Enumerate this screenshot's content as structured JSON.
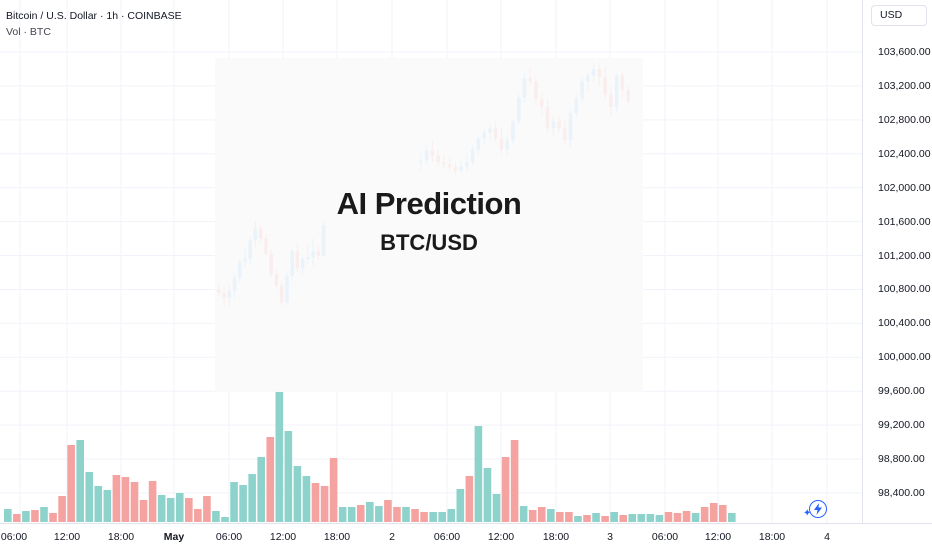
{
  "header": {
    "symbol_line": "Bitcoin / U.S. Dollar · 1h · COINBASE",
    "volume_line": "Vol · BTC"
  },
  "overlay": {
    "title": "AI Prediction",
    "subtitle": "BTC/USD"
  },
  "price_scale": {
    "currency": "USD",
    "labels": [
      "103,600.00",
      "103,200.00",
      "102,800.00",
      "102,400.00",
      "102,000.00",
      "101,600.00",
      "101,200.00",
      "100,800.00",
      "100,400.00",
      "100,000.00",
      "99,600.00",
      "99,200.00",
      "98,800.00",
      "98,400.00"
    ]
  },
  "time_scale": {
    "labels": [
      {
        "text": "06:00",
        "bold": false
      },
      {
        "text": "12:00",
        "bold": false
      },
      {
        "text": "18:00",
        "bold": false
      },
      {
        "text": "May",
        "bold": true
      },
      {
        "text": "06:00",
        "bold": false
      },
      {
        "text": "12:00",
        "bold": false
      },
      {
        "text": "18:00",
        "bold": false
      },
      {
        "text": "2",
        "bold": false
      },
      {
        "text": "06:00",
        "bold": false
      },
      {
        "text": "12:00",
        "bold": false
      },
      {
        "text": "18:00",
        "bold": false
      },
      {
        "text": "3",
        "bold": false
      },
      {
        "text": "06:00",
        "bold": false
      },
      {
        "text": "12:00",
        "bold": false
      },
      {
        "text": "18:00",
        "bold": false
      },
      {
        "text": "4",
        "bold": false
      }
    ]
  },
  "icons": {
    "chart_action": "lightning-icon",
    "sparkle": "sparkle-icon"
  },
  "colors": {
    "up": "#26a69a",
    "down": "#ef5350",
    "up_candle": "#2196f3",
    "volume_up": "#8ed3cb",
    "volume_down": "#f5a3a1"
  },
  "chart_data": {
    "type": "candlestick",
    "symbol": "Bitcoin / U.S. Dollar",
    "interval": "1h",
    "exchange": "COINBASE",
    "y_axis_ticks": [
      98400,
      98800,
      99200,
      99600,
      100000,
      100400,
      100800,
      101200,
      101600,
      102000,
      102400,
      102800,
      103200,
      103600
    ],
    "candles": [
      {
        "o": 100800,
        "h": 100880,
        "l": 100720,
        "c": 100760
      },
      {
        "o": 100760,
        "h": 100820,
        "l": 100620,
        "c": 100700
      },
      {
        "o": 100700,
        "h": 100850,
        "l": 100600,
        "c": 100780
      },
      {
        "o": 100780,
        "h": 100990,
        "l": 100700,
        "c": 100940
      },
      {
        "o": 100940,
        "h": 101150,
        "l": 100880,
        "c": 101130
      },
      {
        "o": 101130,
        "h": 101300,
        "l": 101050,
        "c": 101160
      },
      {
        "o": 101160,
        "h": 101420,
        "l": 101100,
        "c": 101380
      },
      {
        "o": 101380,
        "h": 101600,
        "l": 101300,
        "c": 101520
      },
      {
        "o": 101520,
        "h": 101560,
        "l": 101350,
        "c": 101400
      },
      {
        "o": 101400,
        "h": 101450,
        "l": 101200,
        "c": 101220
      },
      {
        "o": 101220,
        "h": 101280,
        "l": 100950,
        "c": 100980
      },
      {
        "o": 100980,
        "h": 101040,
        "l": 100800,
        "c": 100850
      },
      {
        "o": 100850,
        "h": 100900,
        "l": 100600,
        "c": 100650
      },
      {
        "o": 100650,
        "h": 101000,
        "l": 100620,
        "c": 100960
      },
      {
        "o": 100960,
        "h": 101280,
        "l": 100900,
        "c": 101250
      },
      {
        "o": 101250,
        "h": 101350,
        "l": 101000,
        "c": 101050
      },
      {
        "o": 101050,
        "h": 101200,
        "l": 100980,
        "c": 101160
      },
      {
        "o": 101160,
        "h": 101310,
        "l": 101100,
        "c": 101180
      },
      {
        "o": 101180,
        "h": 101400,
        "l": 101080,
        "c": 101250
      },
      {
        "o": 101250,
        "h": 101320,
        "l": 101150,
        "c": 101200
      },
      {
        "o": 101200,
        "h": 101600,
        "l": 101180,
        "c": 101560
      },
      {
        "o": 102300,
        "h": 102400,
        "l": 102200,
        "c": 102320
      },
      {
        "o": 102320,
        "h": 102500,
        "l": 102280,
        "c": 102440
      },
      {
        "o": 102440,
        "h": 102560,
        "l": 102300,
        "c": 102380
      },
      {
        "o": 102380,
        "h": 102450,
        "l": 102250,
        "c": 102300
      },
      {
        "o": 102300,
        "h": 102400,
        "l": 102230,
        "c": 102280
      },
      {
        "o": 102280,
        "h": 102350,
        "l": 102200,
        "c": 102240
      },
      {
        "o": 102240,
        "h": 102300,
        "l": 102150,
        "c": 102200
      },
      {
        "o": 102200,
        "h": 102320,
        "l": 102170,
        "c": 102250
      },
      {
        "o": 102250,
        "h": 102400,
        "l": 102200,
        "c": 102300
      },
      {
        "o": 102300,
        "h": 102500,
        "l": 102260,
        "c": 102450
      },
      {
        "o": 102450,
        "h": 102620,
        "l": 102400,
        "c": 102580
      },
      {
        "o": 102580,
        "h": 102700,
        "l": 102500,
        "c": 102650
      },
      {
        "o": 102650,
        "h": 102760,
        "l": 102560,
        "c": 102700
      },
      {
        "o": 102700,
        "h": 102780,
        "l": 102540,
        "c": 102580
      },
      {
        "o": 102580,
        "h": 102700,
        "l": 102400,
        "c": 102450
      },
      {
        "o": 102450,
        "h": 102620,
        "l": 102380,
        "c": 102560
      },
      {
        "o": 102560,
        "h": 102800,
        "l": 102520,
        "c": 102780
      },
      {
        "o": 102780,
        "h": 103100,
        "l": 102750,
        "c": 103060
      },
      {
        "o": 103060,
        "h": 103350,
        "l": 103000,
        "c": 103290
      },
      {
        "o": 103290,
        "h": 103420,
        "l": 103200,
        "c": 103250
      },
      {
        "o": 103250,
        "h": 103300,
        "l": 102980,
        "c": 103050
      },
      {
        "o": 103050,
        "h": 103120,
        "l": 102850,
        "c": 102950
      },
      {
        "o": 102950,
        "h": 103050,
        "l": 102650,
        "c": 102700
      },
      {
        "o": 102700,
        "h": 102850,
        "l": 102600,
        "c": 102780
      },
      {
        "o": 102780,
        "h": 102850,
        "l": 102640,
        "c": 102700
      },
      {
        "o": 102700,
        "h": 102800,
        "l": 102500,
        "c": 102560
      },
      {
        "o": 102560,
        "h": 102920,
        "l": 102480,
        "c": 102880
      },
      {
        "o": 102880,
        "h": 103100,
        "l": 102820,
        "c": 103050
      },
      {
        "o": 103050,
        "h": 103300,
        "l": 103000,
        "c": 103250
      },
      {
        "o": 103250,
        "h": 103350,
        "l": 103150,
        "c": 103320
      },
      {
        "o": 103320,
        "h": 103480,
        "l": 103250,
        "c": 103400
      },
      {
        "o": 103400,
        "h": 103470,
        "l": 103200,
        "c": 103300
      },
      {
        "o": 103300,
        "h": 103420,
        "l": 103050,
        "c": 103100
      },
      {
        "o": 103100,
        "h": 103200,
        "l": 102850,
        "c": 102950
      },
      {
        "o": 102950,
        "h": 103350,
        "l": 102900,
        "c": 103320
      },
      {
        "o": 103320,
        "h": 103360,
        "l": 103050,
        "c": 103150
      },
      {
        "o": 103150,
        "h": 103200,
        "l": 102980,
        "c": 103020
      }
    ],
    "volume": [
      {
        "v": 13,
        "up": true
      },
      {
        "v": 8,
        "up": false
      },
      {
        "v": 11,
        "up": true
      },
      {
        "v": 12,
        "up": false
      },
      {
        "v": 15,
        "up": true
      },
      {
        "v": 9,
        "up": false
      },
      {
        "v": 26,
        "up": false
      },
      {
        "v": 77,
        "up": false
      },
      {
        "v": 82,
        "up": true
      },
      {
        "v": 50,
        "up": true
      },
      {
        "v": 36,
        "up": true
      },
      {
        "v": 32,
        "up": true
      },
      {
        "v": 47,
        "up": false
      },
      {
        "v": 45,
        "up": false
      },
      {
        "v": 40,
        "up": false
      },
      {
        "v": 22,
        "up": false
      },
      {
        "v": 41,
        "up": false
      },
      {
        "v": 27,
        "up": true
      },
      {
        "v": 24,
        "up": true
      },
      {
        "v": 29,
        "up": true
      },
      {
        "v": 24,
        "up": false
      },
      {
        "v": 13,
        "up": false
      },
      {
        "v": 26,
        "up": false
      },
      {
        "v": 11,
        "up": true
      },
      {
        "v": 5,
        "up": true
      },
      {
        "v": 40,
        "up": true
      },
      {
        "v": 37,
        "up": true
      },
      {
        "v": 48,
        "up": true
      },
      {
        "v": 65,
        "up": true
      },
      {
        "v": 85,
        "up": false
      },
      {
        "v": 131,
        "up": true
      },
      {
        "v": 91,
        "up": true
      },
      {
        "v": 56,
        "up": true
      },
      {
        "v": 46,
        "up": true
      },
      {
        "v": 39,
        "up": false
      },
      {
        "v": 36,
        "up": false
      },
      {
        "v": 64,
        "up": false
      },
      {
        "v": 15,
        "up": true
      },
      {
        "v": 15,
        "up": true
      },
      {
        "v": 17,
        "up": false
      },
      {
        "v": 20,
        "up": true
      },
      {
        "v": 16,
        "up": true
      },
      {
        "v": 22,
        "up": false
      },
      {
        "v": 15,
        "up": false
      },
      {
        "v": 15,
        "up": true
      },
      {
        "v": 13,
        "up": false
      },
      {
        "v": 10,
        "up": false
      },
      {
        "v": 10,
        "up": true
      },
      {
        "v": 10,
        "up": true
      },
      {
        "v": 13,
        "up": true
      },
      {
        "v": 33,
        "up": true
      },
      {
        "v": 46,
        "up": false
      },
      {
        "v": 96,
        "up": true
      },
      {
        "v": 54,
        "up": true
      },
      {
        "v": 28,
        "up": true
      },
      {
        "v": 65,
        "up": false
      },
      {
        "v": 82,
        "up": false
      },
      {
        "v": 16,
        "up": true
      },
      {
        "v": 12,
        "up": false
      },
      {
        "v": 15,
        "up": false
      },
      {
        "v": 13,
        "up": true
      },
      {
        "v": 10,
        "up": false
      },
      {
        "v": 10,
        "up": false
      },
      {
        "v": 6,
        "up": true
      },
      {
        "v": 7,
        "up": false
      },
      {
        "v": 9,
        "up": true
      },
      {
        "v": 6,
        "up": false
      },
      {
        "v": 10,
        "up": true
      },
      {
        "v": 7,
        "up": false
      },
      {
        "v": 8,
        "up": true
      },
      {
        "v": 8,
        "up": true
      },
      {
        "v": 8,
        "up": true
      },
      {
        "v": 7,
        "up": true
      },
      {
        "v": 10,
        "up": false
      },
      {
        "v": 9,
        "up": false
      },
      {
        "v": 11,
        "up": false
      },
      {
        "v": 9,
        "up": true
      },
      {
        "v": 15,
        "up": false
      },
      {
        "v": 19,
        "up": false
      },
      {
        "v": 17,
        "up": false
      },
      {
        "v": 9,
        "up": true
      }
    ]
  }
}
